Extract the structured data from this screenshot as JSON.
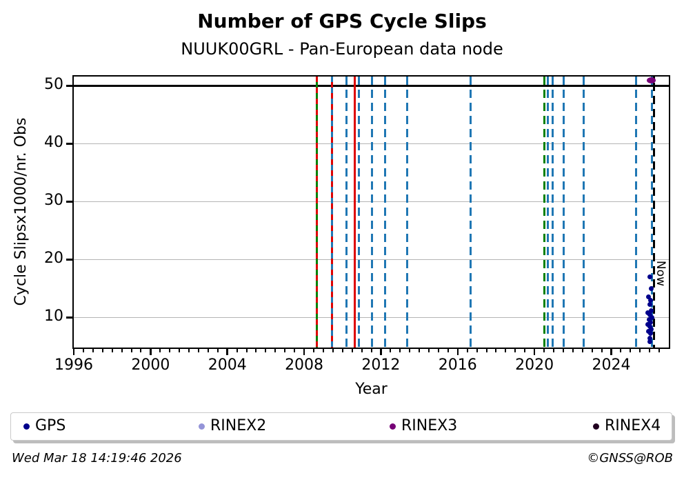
{
  "footer": {
    "timestamp": "Wed Mar 18 14:19:46 2026",
    "credit": "©GNSS@ROB"
  },
  "chart_data": {
    "type": "scatter",
    "title": "Number of GPS Cycle Slips",
    "subtitle": "NUUK00GRL - Pan-European data node",
    "xlabel": "Year",
    "ylabel": "Cycle Slipsx1000/nr. Obs",
    "xlim": [
      1996,
      2027
    ],
    "ylim": [
      4.8,
      51.6
    ],
    "x_major_ticks": [
      1996,
      2000,
      2004,
      2008,
      2012,
      2016,
      2020,
      2024
    ],
    "x_minor_tick_step": 0.5,
    "y_ticks": [
      10,
      20,
      30,
      40,
      50
    ],
    "grid": "horizontal",
    "grid_color": "#b4b4b4",
    "axis_color": "#000000",
    "threshold_line": {
      "y": 50,
      "color": "#000000",
      "style": "solid"
    },
    "event_lines": [
      {
        "year": 2008.68,
        "color": "#008000",
        "style": "solid"
      },
      {
        "year": 2008.68,
        "color": "#dd0000",
        "style": "dashed",
        "dash": [
          8,
          8
        ]
      },
      {
        "year": 2009.44,
        "color": "#dd0000",
        "style": "solid"
      },
      {
        "year": 2009.44,
        "color": "#1f77b4",
        "style": "dashed",
        "dash": [
          8,
          8
        ]
      },
      {
        "year": 2010.19,
        "color": "#1f77b4",
        "style": "dashed"
      },
      {
        "year": 2010.62,
        "color": "#dd0000",
        "style": "solid"
      },
      {
        "year": 2010.86,
        "color": "#1f77b4",
        "style": "dashed"
      },
      {
        "year": 2011.52,
        "color": "#1f77b4",
        "style": "dashed"
      },
      {
        "year": 2012.21,
        "color": "#1f77b4",
        "style": "dashed"
      },
      {
        "year": 2013.36,
        "color": "#1f77b4",
        "style": "dashed"
      },
      {
        "year": 2016.66,
        "color": "#1f77b4",
        "style": "dashed"
      },
      {
        "year": 2020.52,
        "color": "#008000",
        "style": "dashed"
      },
      {
        "year": 2020.68,
        "color": "#1f77b4",
        "style": "dashed"
      },
      {
        "year": 2020.93,
        "color": "#1f77b4",
        "style": "dashed"
      },
      {
        "year": 2021.51,
        "color": "#1f77b4",
        "style": "dashed"
      },
      {
        "year": 2022.58,
        "color": "#1f77b4",
        "style": "dashed"
      },
      {
        "year": 2025.31,
        "color": "#1f77b4",
        "style": "dashed"
      },
      {
        "year": 2026.13,
        "color": "#1f77b4",
        "style": "dashed"
      }
    ],
    "now_marker": {
      "year": 2026.21,
      "label": "Now",
      "color": "#000000",
      "style": "dashed"
    },
    "series": [
      {
        "name": "GPS",
        "color": "#00008b",
        "marker_size": [
          7,
          7
        ],
        "points": [
          [
            2026.0,
            17.0
          ],
          [
            2026.1,
            15.0
          ],
          [
            2025.95,
            13.5
          ],
          [
            2026.05,
            12.9
          ],
          [
            2026.0,
            12.2
          ],
          [
            2026.08,
            11.2
          ],
          [
            2025.92,
            10.8
          ],
          [
            2026.02,
            10.4
          ],
          [
            2026.12,
            10.0
          ],
          [
            2025.96,
            9.6
          ],
          [
            2026.06,
            9.2
          ],
          [
            2025.9,
            8.8
          ],
          [
            2026.0,
            8.4
          ],
          [
            2026.1,
            8.0
          ],
          [
            2025.94,
            7.6
          ],
          [
            2026.04,
            7.2
          ],
          [
            2026.0,
            6.4
          ],
          [
            2026.02,
            5.8
          ]
        ]
      },
      {
        "name": "RINEX2",
        "color": "#9494d8",
        "marker_size": [
          8,
          8
        ],
        "points": []
      },
      {
        "name": "RINEX3",
        "color": "#760076",
        "marker_size": [
          13,
          9
        ],
        "points": [
          [
            2026.1,
            50.9
          ]
        ]
      },
      {
        "name": "RINEX4",
        "color": "#21001f",
        "marker_size": [
          9,
          9
        ],
        "points": []
      }
    ],
    "legend": {
      "position": "bottom",
      "items": [
        "GPS",
        "RINEX2",
        "RINEX3",
        "RINEX4"
      ]
    }
  }
}
